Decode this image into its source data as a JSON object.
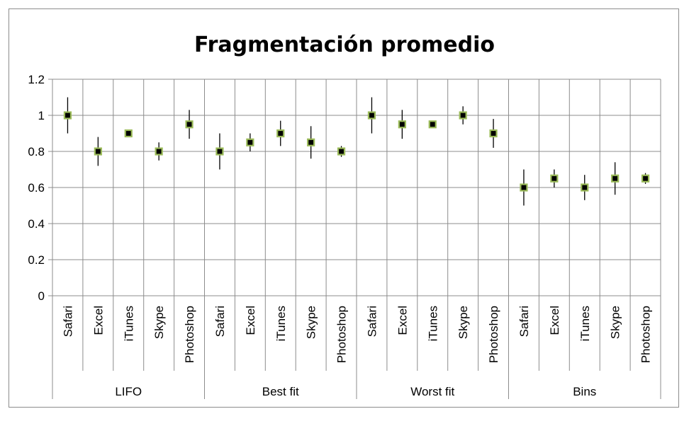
{
  "chart_data": {
    "type": "scatter",
    "title": "Fragmentación promedio",
    "xlabel": "",
    "ylabel": "",
    "ylim": [
      0,
      1.2
    ],
    "yticks": [
      "0",
      "0.2",
      "0.4",
      "0.6",
      "0.8",
      "1",
      "1.2"
    ],
    "grid": true,
    "legend": "none",
    "marker_color": "#000000",
    "marker_edge_color": "#9bbb59",
    "groups": [
      {
        "name": "LIFO",
        "points": [
          {
            "category": "Safari",
            "value": 1.0,
            "error_low": 0.9,
            "error_high": 1.1
          },
          {
            "category": "Excel",
            "value": 0.8,
            "error_low": 0.72,
            "error_high": 0.88
          },
          {
            "category": "iTunes",
            "value": 0.9,
            "error_low": 0.9,
            "error_high": 0.9
          },
          {
            "category": "Skype",
            "value": 0.8,
            "error_low": 0.75,
            "error_high": 0.85
          },
          {
            "category": "Photoshop",
            "value": 0.95,
            "error_low": 0.87,
            "error_high": 1.03
          }
        ]
      },
      {
        "name": "Best fit",
        "points": [
          {
            "category": "Safari",
            "value": 0.8,
            "error_low": 0.7,
            "error_high": 0.9
          },
          {
            "category": "Excel",
            "value": 0.85,
            "error_low": 0.8,
            "error_high": 0.9
          },
          {
            "category": "iTunes",
            "value": 0.9,
            "error_low": 0.83,
            "error_high": 0.97
          },
          {
            "category": "Skype",
            "value": 0.85,
            "error_low": 0.76,
            "error_high": 0.94
          },
          {
            "category": "Photoshop",
            "value": 0.8,
            "error_low": 0.77,
            "error_high": 0.83
          }
        ]
      },
      {
        "name": "Worst fit",
        "points": [
          {
            "category": "Safari",
            "value": 1.0,
            "error_low": 0.9,
            "error_high": 1.1
          },
          {
            "category": "Excel",
            "value": 0.95,
            "error_low": 0.87,
            "error_high": 1.03
          },
          {
            "category": "iTunes",
            "value": 0.95,
            "error_low": 0.95,
            "error_high": 0.95
          },
          {
            "category": "Skype",
            "value": 1.0,
            "error_low": 0.95,
            "error_high": 1.05
          },
          {
            "category": "Photoshop",
            "value": 0.9,
            "error_low": 0.82,
            "error_high": 0.98
          }
        ]
      },
      {
        "name": "Bins",
        "points": [
          {
            "category": "Safari",
            "value": 0.6,
            "error_low": 0.5,
            "error_high": 0.7
          },
          {
            "category": "Excel",
            "value": 0.65,
            "error_low": 0.6,
            "error_high": 0.7
          },
          {
            "category": "iTunes",
            "value": 0.6,
            "error_low": 0.53,
            "error_high": 0.67
          },
          {
            "category": "Skype",
            "value": 0.65,
            "error_low": 0.56,
            "error_high": 0.74
          },
          {
            "category": "Photoshop",
            "value": 0.65,
            "error_low": 0.62,
            "error_high": 0.68
          }
        ]
      }
    ]
  }
}
